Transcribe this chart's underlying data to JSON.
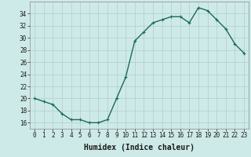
{
  "x": [
    0,
    1,
    2,
    3,
    4,
    5,
    6,
    7,
    8,
    9,
    10,
    11,
    12,
    13,
    14,
    15,
    16,
    17,
    18,
    19,
    20,
    21,
    22,
    23
  ],
  "y": [
    20,
    19.5,
    19,
    17.5,
    16.5,
    16.5,
    16,
    16,
    16.5,
    20,
    23.5,
    29.5,
    31,
    32.5,
    33,
    33.5,
    33.5,
    32.5,
    35,
    34.5,
    33,
    31.5,
    29,
    27.5
  ],
  "line_color": "#1a6b5a",
  "marker": "+",
  "marker_size": 3,
  "marker_linewidth": 0.8,
  "bg_color": "#ceeae8",
  "grid_color": "#b0ceca",
  "xlabel": "Humidex (Indice chaleur)",
  "xlim": [
    -0.5,
    23.5
  ],
  "ylim": [
    15,
    36
  ],
  "yticks": [
    16,
    18,
    20,
    22,
    24,
    26,
    28,
    30,
    32,
    34
  ],
  "xticks": [
    0,
    1,
    2,
    3,
    4,
    5,
    6,
    7,
    8,
    9,
    10,
    11,
    12,
    13,
    14,
    15,
    16,
    17,
    18,
    19,
    20,
    21,
    22,
    23
  ],
  "font_color": "#1a1a1a",
  "xlabel_fontsize": 7,
  "tick_fontsize": 5.5,
  "line_width": 1.0
}
